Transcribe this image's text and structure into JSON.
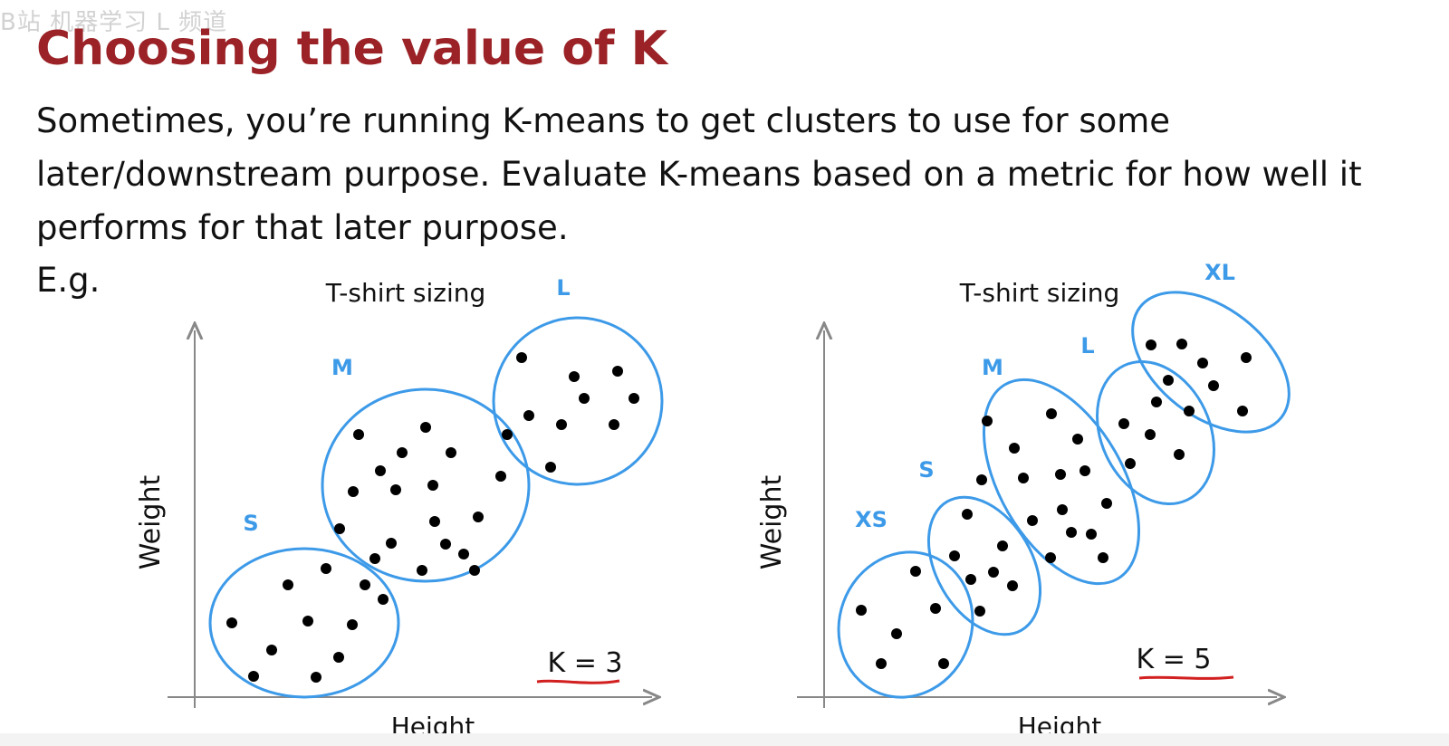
{
  "watermark": "B站 机器学习 L 频道",
  "slide": {
    "title": "Choosing the value of K",
    "body": "Sometimes, you’re running K-means to get clusters to use for some later/downstream purpose. Evaluate K-means based on a metric for how well it performs for that later purpose.",
    "example_label": "E.g."
  },
  "colors": {
    "title": "#9b2226",
    "cluster_outline": "#3d9ae8",
    "cluster_label": "#3d9ae8",
    "points": "#000000",
    "axis": "#888888",
    "underline": "#d21f1f"
  },
  "diagrams": [
    {
      "title": "T-shirt sizing",
      "xlabel": "Height",
      "ylabel": "Weight",
      "k_label": "K = 3",
      "clusters": [
        {
          "label": "S",
          "point_count": 11
        },
        {
          "label": "M",
          "point_count": 18
        },
        {
          "label": "L",
          "point_count": 10
        }
      ]
    },
    {
      "title": "T-shirt sizing",
      "xlabel": "Height",
      "ylabel": "Weight",
      "k_label": "K = 5",
      "clusters": [
        {
          "label": "XS",
          "point_count": 6
        },
        {
          "label": "S",
          "point_count": 8
        },
        {
          "label": "M",
          "point_count": 14
        },
        {
          "label": "L",
          "point_count": 7
        },
        {
          "label": "XL",
          "point_count": 6
        }
      ]
    }
  ]
}
